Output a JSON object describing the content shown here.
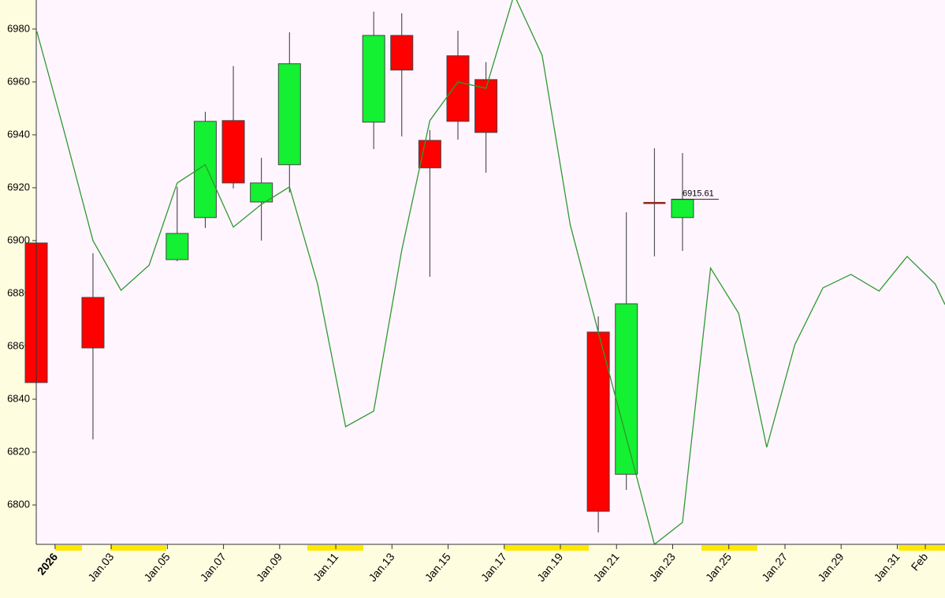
{
  "chart_data": {
    "type": "candlestick",
    "x": [
      0.33,
      2.35,
      5.35,
      6.35,
      7.35,
      8.35,
      9.35,
      12.35,
      13.35,
      14.35,
      15.35,
      16.35,
      20.35,
      21.35,
      22.35,
      23.35
    ],
    "open": [
      6899.1,
      6878.5,
      6892.8,
      6908.7,
      6945.4,
      6914.6,
      6928.7,
      6944.8,
      6977.6,
      6937.9,
      6969.9,
      6960.9,
      6865.4,
      6811.6,
      6914.3,
      6908.7
    ],
    "high": [
      6899.1,
      6895.2,
      6920.3,
      6948.7,
      6966.0,
      6931.3,
      6978.8,
      6986.6,
      6986.0,
      6941.8,
      6979.4,
      6967.5,
      6871.3,
      6910.7,
      6934.9,
      6933.1
    ],
    "low": [
      6846.3,
      6824.8,
      6892.2,
      6904.8,
      6919.7,
      6900.0,
      6918.2,
      6934.6,
      6939.4,
      6886.3,
      6938.2,
      6925.7,
      6789.6,
      6805.7,
      6894.0,
      6896.1
    ],
    "close": [
      6846.3,
      6859.4,
      6902.7,
      6945.1,
      6921.8,
      6921.8,
      6966.9,
      6977.6,
      6964.5,
      6927.5,
      6945.1,
      6940.9,
      6797.6,
      6876.1,
      6914.3,
      6915.61
    ],
    "up_color": "#14f032",
    "down_color": "#ff0000",
    "doji_color": "#8b2a1a",
    "overlay": {
      "color": "#2e9a2e",
      "x": [
        0.35,
        1.35,
        2.35,
        3.35,
        4.35,
        5.35,
        6.35,
        7.35,
        8.35,
        9.35,
        10.35,
        11.35,
        12.35,
        13.35,
        14.35,
        15.35,
        16.35,
        17.35,
        18.35,
        19.35,
        20.35,
        21.35,
        22.35,
        23.35,
        24.35,
        25.35,
        26.35,
        27.35,
        28.35,
        29.35,
        30.35,
        31.35,
        32.35,
        32.7
      ],
      "values": [
        6979.1,
        6940.3,
        6900.0,
        6881.2,
        6890.7,
        6921.8,
        6928.7,
        6905.1,
        6913.7,
        6920.3,
        6883.6,
        6829.6,
        6835.5,
        6896.4,
        6945.4,
        6960.0,
        6957.6,
        6993.0,
        6970.1,
        6906.0,
        6865.4,
        6825.4,
        6785.1,
        6793.4,
        6889.6,
        6872.5,
        6821.8,
        6860.6,
        6882.1,
        6887.2,
        6880.9,
        6894.0,
        6883.6,
        6875.8
      ]
    },
    "xlim": [
      0.33,
      32.7
    ],
    "ylim": [
      6785.1,
      6991.0
    ],
    "yticks": [
      6800,
      6820,
      6840,
      6860,
      6880,
      6900,
      6920,
      6940,
      6960,
      6980
    ],
    "xticks": [
      {
        "value": 1,
        "label": "2026"
      },
      {
        "value": 3,
        "label": "Jan.03"
      },
      {
        "value": 5,
        "label": "Jan.05"
      },
      {
        "value": 7,
        "label": "Jan.07"
      },
      {
        "value": 9,
        "label": "Jan.09"
      },
      {
        "value": 11,
        "label": "Jan.11"
      },
      {
        "value": 13,
        "label": "Jan.13"
      },
      {
        "value": 15,
        "label": "Jan.15"
      },
      {
        "value": 17,
        "label": "Jan.17"
      },
      {
        "value": 19,
        "label": "Jan.19"
      },
      {
        "value": 21,
        "label": "Jan.21"
      },
      {
        "value": 23,
        "label": "Jan.23"
      },
      {
        "value": 25,
        "label": "Jan.25"
      },
      {
        "value": 27,
        "label": "Jan.27"
      },
      {
        "value": 29,
        "label": "Jan.29"
      },
      {
        "value": 31,
        "label": "Jan.31"
      },
      {
        "value": 32,
        "label": "Feb"
      }
    ]
  }
}
